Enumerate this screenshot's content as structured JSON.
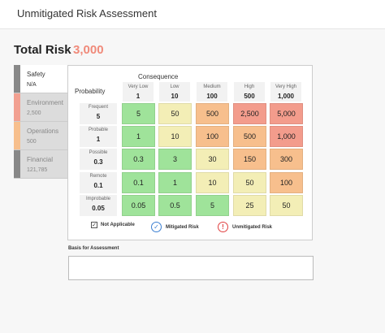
{
  "header": {
    "title": "Unmitigated Risk Assessment"
  },
  "total": {
    "label": "Total Risk",
    "value": "3,000"
  },
  "tabs": [
    {
      "name": "Safety",
      "value": "N/A",
      "color": "#888888",
      "active": true
    },
    {
      "name": "Environment",
      "value": "2,500",
      "color": "#f2a091",
      "active": false
    },
    {
      "name": "Operations",
      "value": "500",
      "color": "#f7bf8d",
      "active": false
    },
    {
      "name": "Financial",
      "value": "121,785",
      "color": "#888888",
      "active": false
    }
  ],
  "matrix": {
    "consequence_label": "Consequence",
    "probability_label": "Probability",
    "columns": [
      {
        "name": "Very Low",
        "value": "1"
      },
      {
        "name": "Low",
        "value": "10"
      },
      {
        "name": "Medium",
        "value": "100"
      },
      {
        "name": "High",
        "value": "500"
      },
      {
        "name": "Very High",
        "value": "1,000"
      }
    ],
    "rows": [
      {
        "name": "Frequent",
        "value": "5",
        "cells": [
          {
            "v": "5",
            "c": "green"
          },
          {
            "v": "50",
            "c": "yellow"
          },
          {
            "v": "500",
            "c": "orange"
          },
          {
            "v": "2,500",
            "c": "red"
          },
          {
            "v": "5,000",
            "c": "red"
          }
        ]
      },
      {
        "name": "Probable",
        "value": "1",
        "cells": [
          {
            "v": "1",
            "c": "green"
          },
          {
            "v": "10",
            "c": "yellow"
          },
          {
            "v": "100",
            "c": "orange"
          },
          {
            "v": "500",
            "c": "orange"
          },
          {
            "v": "1,000",
            "c": "red"
          }
        ]
      },
      {
        "name": "Possible",
        "value": "0.3",
        "cells": [
          {
            "v": "0.3",
            "c": "green"
          },
          {
            "v": "3",
            "c": "green"
          },
          {
            "v": "30",
            "c": "yellow"
          },
          {
            "v": "150",
            "c": "orange"
          },
          {
            "v": "300",
            "c": "orange"
          }
        ]
      },
      {
        "name": "Remote",
        "value": "0.1",
        "cells": [
          {
            "v": "0.1",
            "c": "green"
          },
          {
            "v": "1",
            "c": "green"
          },
          {
            "v": "10",
            "c": "yellow"
          },
          {
            "v": "50",
            "c": "yellow"
          },
          {
            "v": "100",
            "c": "orange"
          }
        ]
      },
      {
        "name": "Improbable",
        "value": "0.05",
        "cells": [
          {
            "v": "0.05",
            "c": "green"
          },
          {
            "v": "0.5",
            "c": "green"
          },
          {
            "v": "5",
            "c": "green"
          },
          {
            "v": "25",
            "c": "yellow"
          },
          {
            "v": "50",
            "c": "yellow"
          }
        ]
      }
    ]
  },
  "legend": {
    "not_applicable": "Not Applicable",
    "mitigated": "Mitigated Risk",
    "unmitigated": "Unmitigated Risk",
    "check_icon": "✓",
    "alert_icon": "!"
  },
  "basis": {
    "label": "Basis for Assessment",
    "value": ""
  }
}
